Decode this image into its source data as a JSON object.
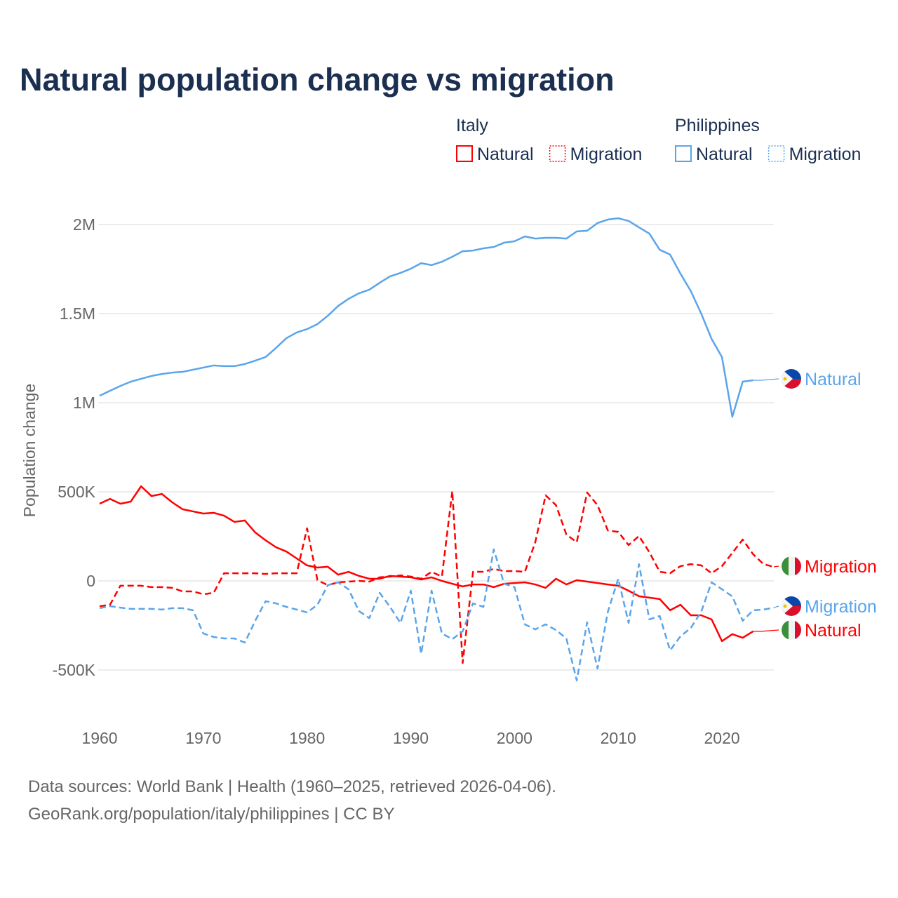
{
  "title": "Natural population change vs migration",
  "footer": {
    "line1": "Data sources: World Bank | Health (1960–2025, retrieved 2026-04-06).",
    "line2": "GeoRank.org/population/italy/philippines | CC BY"
  },
  "legend": {
    "groups": [
      {
        "name": "Italy",
        "items": [
          "Natural",
          "Migration"
        ],
        "color": "#ff0000"
      },
      {
        "name": "Philippines",
        "items": [
          "Natural",
          "Migration"
        ],
        "color": "#5aa5ea"
      }
    ]
  },
  "chart_data": {
    "type": "line",
    "title": "Natural population change vs migration",
    "xlabel": "",
    "ylabel": "Population change",
    "xlim": [
      1960,
      2025
    ],
    "ylim": [
      -600000,
      2100000
    ],
    "x_ticks": [
      1960,
      1970,
      1980,
      1990,
      2000,
      2010,
      2020
    ],
    "y_ticks": [
      {
        "v": -500,
        "label": "-500K"
      },
      {
        "v": 0,
        "label": "0"
      },
      {
        "v": 500,
        "label": "500K"
      },
      {
        "v": 1000,
        "label": "1M"
      },
      {
        "v": 1500,
        "label": "1.5M"
      },
      {
        "v": 2000,
        "label": "2M"
      }
    ],
    "units": "thousands",
    "grid": true,
    "x_start": 1960,
    "series": [
      {
        "name": "Italy Natural",
        "end_label": "Natural",
        "country": "Italy",
        "color": "#ff0000",
        "dashed": false,
        "values": [
          433,
          460,
          433,
          445,
          531,
          476,
          488,
          441,
          402,
          390,
          378,
          382,
          366,
          331,
          339,
          272,
          228,
          189,
          165,
          126,
          87,
          75,
          79,
          35,
          51,
          28,
          12,
          12,
          28,
          24,
          20,
          8,
          20,
          0,
          -16,
          -31,
          -20,
          -20,
          -35,
          -16,
          -12,
          -8,
          -20,
          -39,
          12,
          -20,
          4,
          -4,
          -12,
          -20,
          -27,
          -55,
          -86,
          -94,
          -102,
          -165,
          -134,
          -193,
          -193,
          -216,
          -338,
          -299,
          -319,
          -283
        ]
      },
      {
        "name": "Italy Migration",
        "end_label": "Migration",
        "country": "Italy",
        "color": "#ff0000",
        "dashed": true,
        "values": [
          -142,
          -134,
          -27,
          -27,
          -27,
          -35,
          -35,
          -39,
          -59,
          -59,
          -75,
          -67,
          43,
          43,
          43,
          43,
          39,
          43,
          43,
          43,
          295,
          4,
          -24,
          -8,
          -4,
          0,
          -4,
          20,
          24,
          31,
          24,
          12,
          51,
          24,
          504,
          -461,
          51,
          51,
          67,
          55,
          55,
          51,
          217,
          480,
          425,
          260,
          217,
          496,
          425,
          283,
          275,
          201,
          252,
          161,
          51,
          43,
          83,
          94,
          87,
          43,
          83,
          157,
          232,
          150,
          94,
          79
        ]
      },
      {
        "name": "Philippines Natural",
        "end_label": "Natural",
        "country": "Philippines",
        "color": "#5aa5ea",
        "dashed": false,
        "values": [
          1039,
          1067,
          1094,
          1118,
          1134,
          1150,
          1161,
          1169,
          1173,
          1185,
          1197,
          1209,
          1205,
          1205,
          1217,
          1236,
          1256,
          1307,
          1362,
          1394,
          1413,
          1441,
          1488,
          1543,
          1583,
          1614,
          1634,
          1673,
          1709,
          1728,
          1752,
          1783,
          1772,
          1791,
          1819,
          1850,
          1854,
          1866,
          1874,
          1898,
          1906,
          1933,
          1921,
          1925,
          1925,
          1921,
          1961,
          1965,
          2008,
          2028,
          2035,
          2020,
          1984,
          1949,
          1858,
          1831,
          1724,
          1626,
          1500,
          1358,
          1256,
          921,
          1118,
          1126
        ]
      },
      {
        "name": "Philippines Migration",
        "end_label": "Migration",
        "country": "Philippines",
        "color": "#5aa5ea",
        "dashed": true,
        "values": [
          -153,
          -142,
          -150,
          -157,
          -157,
          -157,
          -161,
          -153,
          -153,
          -165,
          -295,
          -315,
          -323,
          -323,
          -346,
          -224,
          -114,
          -126,
          -146,
          -161,
          -177,
          -134,
          -24,
          -8,
          -47,
          -169,
          -209,
          -67,
          -146,
          -236,
          -55,
          -409,
          -55,
          -295,
          -327,
          -283,
          -126,
          -146,
          177,
          -16,
          -35,
          -244,
          -272,
          -244,
          -276,
          -323,
          -559,
          -232,
          -492,
          -173,
          12,
          -236,
          94,
          -216,
          -197,
          -390,
          -311,
          -264,
          -173,
          -8,
          -47,
          -87,
          -224,
          -165,
          -161,
          -150
        ]
      }
    ]
  }
}
